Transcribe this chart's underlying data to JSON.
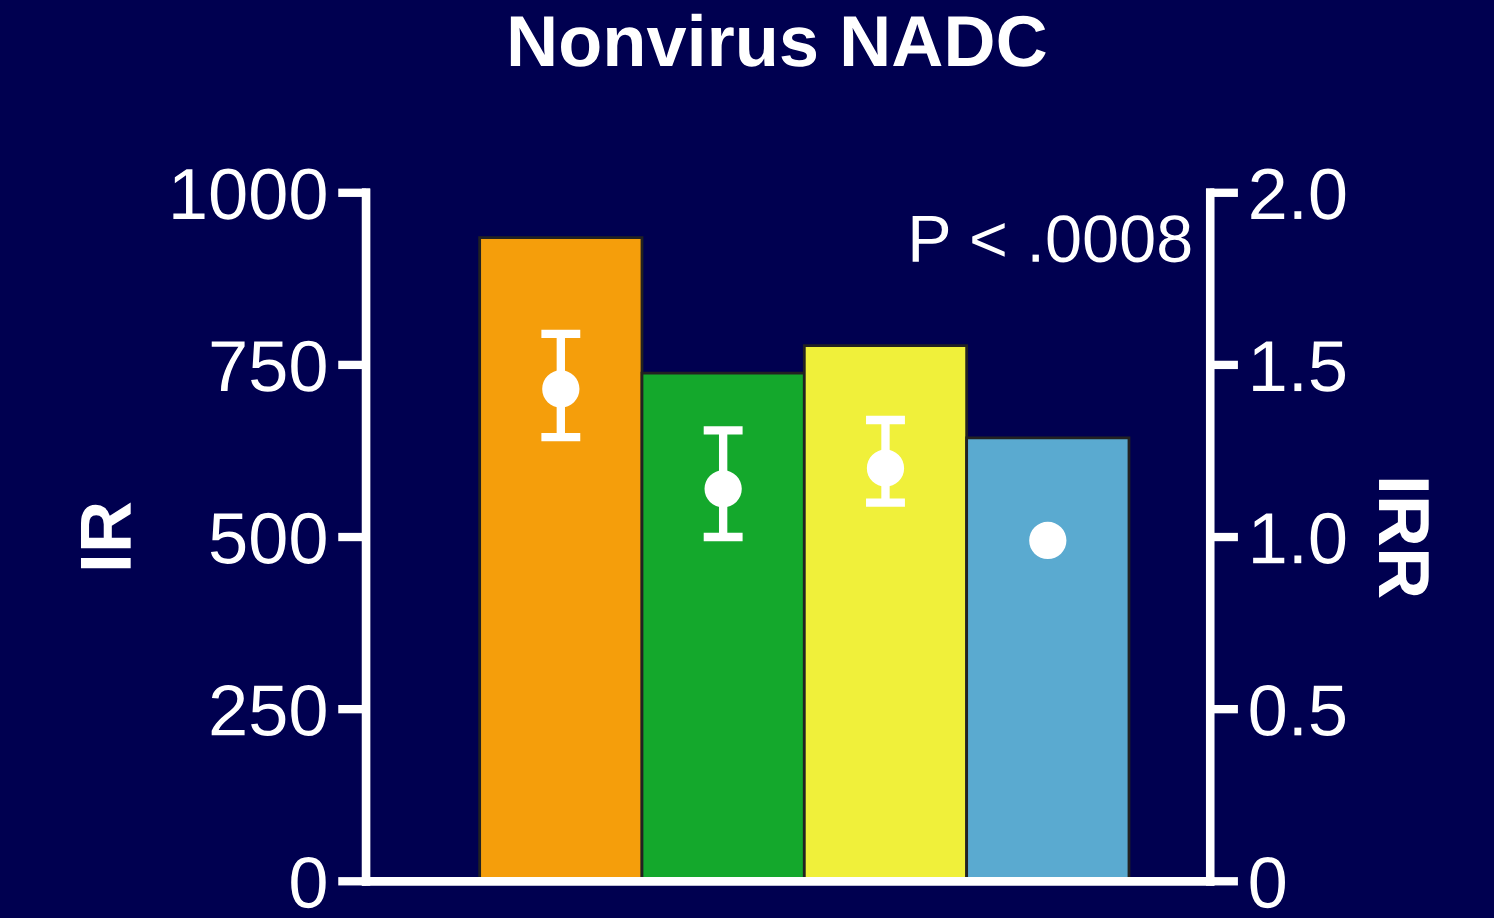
{
  "chart_data": {
    "type": "bar",
    "title": "Nonvirus NADC",
    "ylabel": "IR",
    "y2label": "IRR",
    "categories": [
      null,
      null,
      null,
      null
    ],
    "series": [
      {
        "colors": [
          "#f59e0b",
          "#14a82c",
          "#f0f03a",
          "#5aaad0"
        ],
        "values": [
          935,
          738,
          778,
          644
        ]
      },
      {
        "type": "scatter",
        "axis": "y2",
        "color": "#ffffff",
        "values": [
          1.43,
          1.14,
          1.2,
          0.99
        ],
        "errors": [
          [
            1.29,
            1.59
          ],
          [
            1.0,
            1.31
          ],
          [
            1.1,
            1.34
          ],
          null
        ]
      }
    ],
    "ylim": [
      0,
      1000
    ],
    "yticks": [
      0,
      250,
      500,
      750,
      1000
    ],
    "y2lim": [
      0,
      2.0
    ],
    "y2ticks": [
      {
        "value": 0,
        "label": "0"
      },
      {
        "value": 0.5,
        "label": "0.5"
      },
      {
        "value": 1.0,
        "label": "1.0"
      },
      {
        "value": 1.5,
        "label": "1.5"
      },
      {
        "value": 2.0,
        "label": "2.0"
      }
    ],
    "annotations": [
      "P < .0008"
    ],
    "marker": "circle",
    "grid": false,
    "legend": false
  }
}
